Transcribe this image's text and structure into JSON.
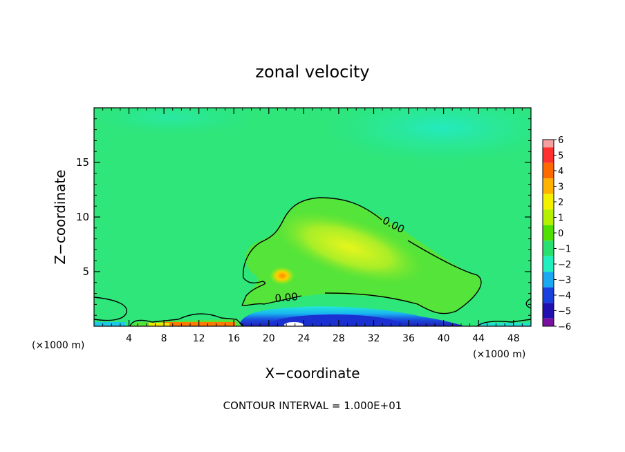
{
  "chart_data": {
    "type": "heatmap",
    "title": "zonal velocity",
    "xlabel": "X−coordinate",
    "ylabel": "Z−coordinate",
    "x_unit_left": "(×1000 m)",
    "x_unit_right": "(×1000 m)",
    "xlim": [
      0,
      50
    ],
    "ylim": [
      0,
      20
    ],
    "x_ticks": [
      4,
      8,
      12,
      16,
      20,
      24,
      28,
      32,
      36,
      40,
      44,
      48
    ],
    "y_ticks": [
      5,
      10,
      15
    ],
    "footer": "CONTOUR INTERVAL = 1.000E+01",
    "contour_labels": [
      "0.00",
      "0.00"
    ],
    "colorbar": {
      "levels": [
        6,
        5,
        4,
        3,
        2,
        1,
        0,
        -1,
        -2,
        -3,
        -4,
        -5,
        -6
      ],
      "level_labels": [
        "6",
        "5",
        "4",
        "3",
        "2",
        "1",
        "0",
        "−1",
        "−2",
        "−3",
        "−4",
        "−5",
        "−6"
      ],
      "colors": [
        "#f4a0a0",
        "#ff3030",
        "#ff6a00",
        "#ffb300",
        "#f2f200",
        "#b4f000",
        "#50e000",
        "#28e070",
        "#20f0c0",
        "#1aa8f0",
        "#1a40e0",
        "#2010b0",
        "#7a10a0"
      ]
    },
    "field_colors": {
      "background": "#2ee67a",
      "upper_teal": "#27e8b0",
      "positive_region": "#55e43a",
      "core_yellow": "#c8f028",
      "peak_orange": "#ffaa00",
      "jet_blue": "#1a30d0",
      "jet_cyan": "#20e8e0",
      "surface_orange": "#ff7a00"
    }
  }
}
